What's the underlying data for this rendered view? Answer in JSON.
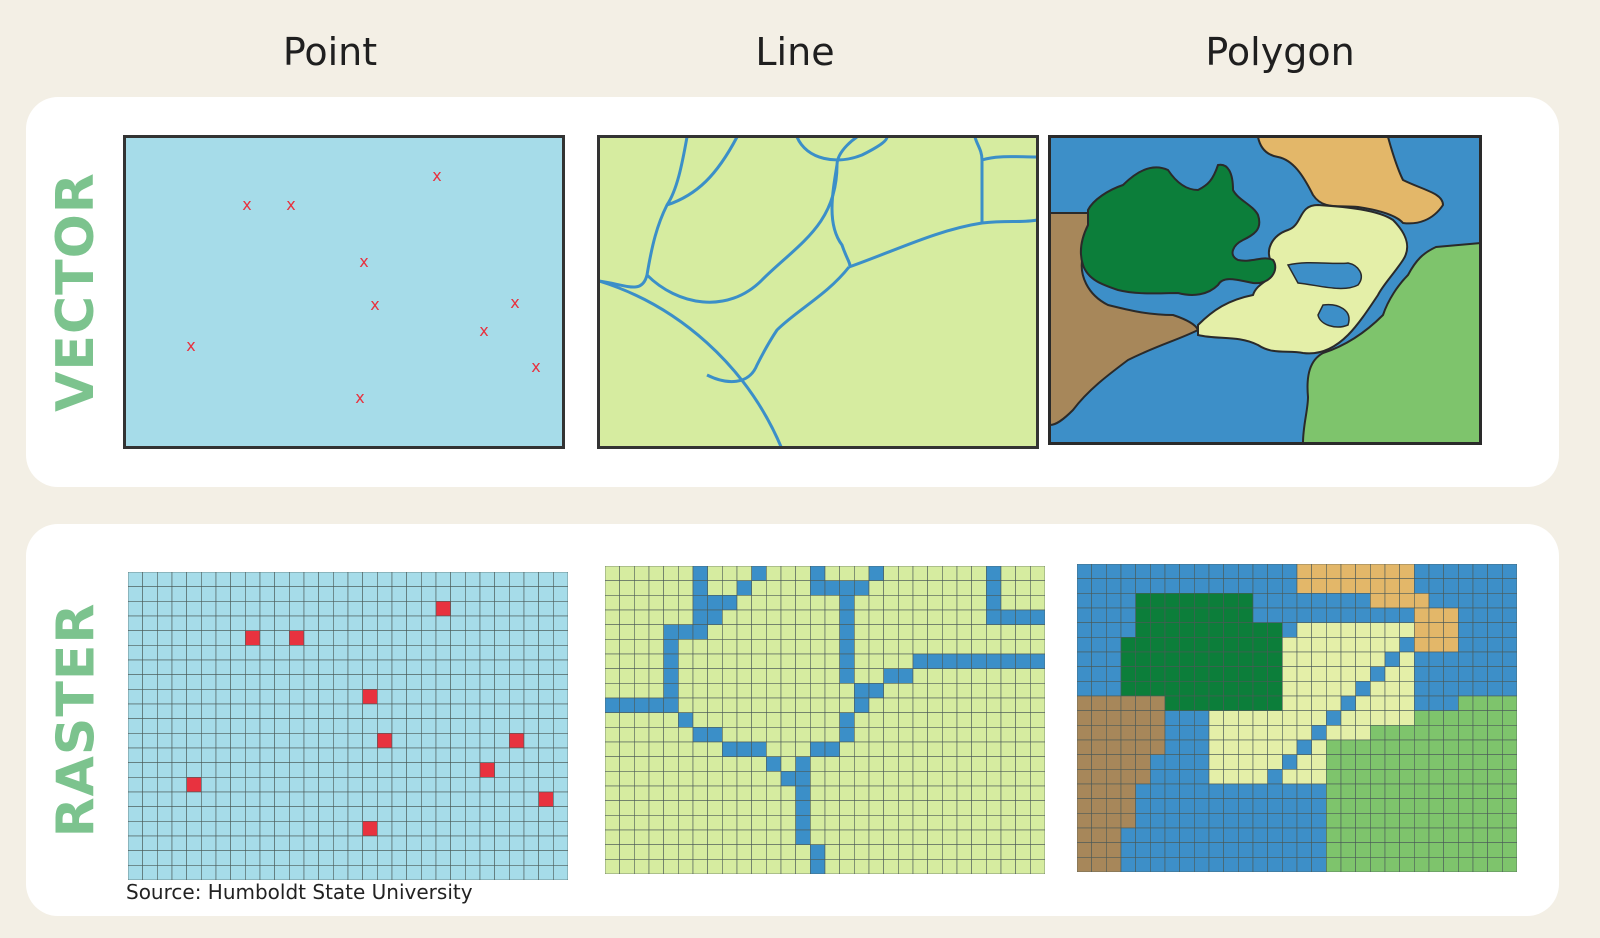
{
  "columns": [
    "Point",
    "Line",
    "Polygon"
  ],
  "rows": [
    "VECTOR",
    "RASTER"
  ],
  "point_marker": "x",
  "source": "Source: Humboldt State University",
  "colors": {
    "background": "#f3efe5",
    "label_green": "#7cc38e",
    "point_bg": "#a6dce9",
    "point_marker": "#e8323f",
    "line_bg": "#d6eca0",
    "line_stroke": "#3b8fc8",
    "poly_blue": "#3d8fc8",
    "poly_dark_green": "#0c7e3a",
    "poly_tan": "#e3b769",
    "poly_light_yellow": "#e4efa8",
    "poly_brown": "#a7875a",
    "poly_green": "#7ec46c"
  }
}
